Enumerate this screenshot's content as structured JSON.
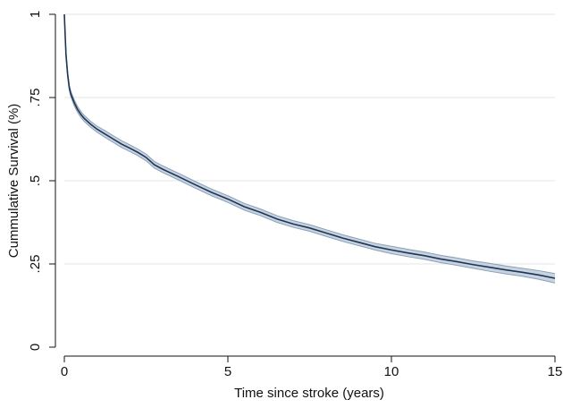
{
  "chart_data": {
    "type": "line",
    "title": "",
    "xlabel": "Time since stroke  (years)",
    "ylabel": "Cummulative Survival (%)",
    "xlim": [
      0,
      15
    ],
    "ylim": [
      0,
      1
    ],
    "x_ticks": [
      0,
      5,
      10,
      15
    ],
    "x_tick_labels": [
      "0",
      "5",
      "10",
      "15"
    ],
    "y_ticks": [
      0,
      0.25,
      0.5,
      0.75,
      1
    ],
    "y_tick_labels": [
      "0",
      ".25",
      ".5",
      ".75",
      "1"
    ],
    "grid": "horizontal",
    "legend": "none",
    "colors": {
      "line": "#1f3553",
      "band_fill": "#c7d3e1",
      "band_edge": "#8aa0b8"
    },
    "series": [
      {
        "x": [
          0,
          0.02,
          0.05,
          0.1,
          0.15,
          0.2,
          0.3,
          0.4,
          0.5,
          0.6,
          0.8,
          1.0,
          1.25,
          1.5,
          1.75,
          2.0,
          2.25,
          2.5,
          2.75,
          3.0,
          3.5,
          4.0,
          4.5,
          5.0,
          5.5,
          6.0,
          6.5,
          7.0,
          7.5,
          8.0,
          8.5,
          9.0,
          9.5,
          10.0,
          10.5,
          11.0,
          11.5,
          12.0,
          12.5,
          13.0,
          13.5,
          14.0,
          14.5,
          15.0
        ],
        "y": [
          1.0,
          0.95,
          0.88,
          0.82,
          0.78,
          0.76,
          0.735,
          0.715,
          0.7,
          0.688,
          0.67,
          0.655,
          0.64,
          0.625,
          0.61,
          0.598,
          0.585,
          0.57,
          0.548,
          0.535,
          0.512,
          0.488,
          0.465,
          0.445,
          0.422,
          0.405,
          0.385,
          0.37,
          0.358,
          0.343,
          0.328,
          0.315,
          0.302,
          0.292,
          0.283,
          0.275,
          0.265,
          0.257,
          0.248,
          0.24,
          0.232,
          0.225,
          0.217,
          0.207
        ],
        "ci_half_width": [
          0,
          0.004,
          0.006,
          0.007,
          0.008,
          0.008,
          0.009,
          0.009,
          0.009,
          0.009,
          0.009,
          0.009,
          0.01,
          0.01,
          0.01,
          0.01,
          0.01,
          0.01,
          0.01,
          0.01,
          0.01,
          0.01,
          0.01,
          0.01,
          0.01,
          0.01,
          0.01,
          0.01,
          0.01,
          0.01,
          0.01,
          0.01,
          0.01,
          0.011,
          0.011,
          0.011,
          0.011,
          0.011,
          0.011,
          0.012,
          0.012,
          0.012,
          0.013,
          0.014
        ]
      }
    ]
  }
}
